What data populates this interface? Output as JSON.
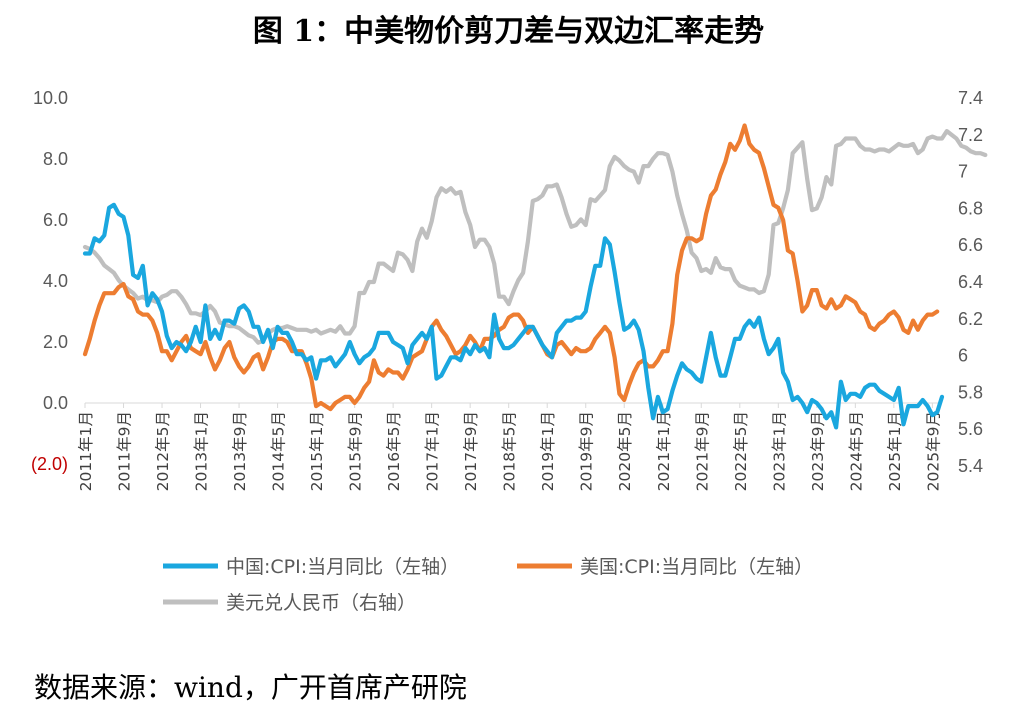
{
  "title": "图 1：中美物价剪刀差与双边汇率走势",
  "source": "数据来源：wind，广开首席产研院",
  "chart_data": {
    "type": "line",
    "y_left": {
      "min": -2,
      "max": 10,
      "ticks": [
        10,
        8,
        6,
        4,
        2,
        0,
        -2
      ],
      "tick_labels": [
        "10.0",
        "8.0",
        "6.0",
        "4.0",
        "2.0",
        "0.0",
        "(2.0)"
      ]
    },
    "y_right": {
      "min": 5.4,
      "max": 7.4,
      "ticks": [
        7.4,
        7.2,
        7,
        6.8,
        6.6,
        6.4,
        6.2,
        6,
        5.8,
        5.6,
        5.4
      ],
      "tick_labels": [
        "7.4",
        "7.2",
        "7",
        "6.8",
        "6.6",
        "6.4",
        "6.2",
        "6",
        "5.8",
        "5.6",
        "5.4"
      ]
    },
    "x_start": "2011-01",
    "x_end": "2025-11",
    "x_tick_labels": [
      "2011年1月",
      "2011年9月",
      "2012年5月",
      "2013年1月",
      "2013年9月",
      "2014年5月",
      "2015年1月",
      "2015年9月",
      "2016年5月",
      "2017年1月",
      "2017年9月",
      "2018年5月",
      "2019年1月",
      "2019年9月",
      "2020年5月",
      "2021年1月",
      "2021年9月",
      "2022年5月",
      "2023年1月",
      "2023年9月",
      "2024年5月",
      "2025年1月",
      "2025年9月"
    ],
    "series": [
      {
        "name": "中国:CPI:当月同比（左轴）",
        "axis": "left",
        "color": "#1aa7df",
        "values": [
          4.9,
          4.9,
          5.4,
          5.3,
          5.5,
          6.4,
          6.5,
          6.2,
          6.1,
          5.5,
          4.2,
          4.1,
          4.5,
          3.2,
          3.6,
          3.4,
          3.0,
          2.2,
          1.8,
          2.0,
          1.9,
          1.7,
          2.0,
          2.5,
          2.0,
          3.2,
          2.1,
          2.4,
          2.1,
          2.7,
          2.7,
          2.6,
          3.1,
          3.2,
          3.0,
          2.5,
          2.5,
          2.0,
          2.4,
          1.8,
          2.5,
          2.3,
          2.3,
          2.0,
          1.6,
          1.6,
          1.4,
          1.5,
          0.8,
          1.4,
          1.4,
          1.5,
          1.2,
          1.4,
          1.6,
          2.0,
          1.6,
          1.3,
          1.5,
          1.6,
          1.8,
          2.3,
          2.3,
          2.3,
          2.0,
          1.9,
          1.8,
          1.3,
          1.9,
          2.1,
          2.3,
          2.1,
          2.5,
          0.8,
          0.9,
          1.2,
          1.5,
          1.5,
          1.4,
          1.8,
          1.6,
          1.9,
          1.7,
          1.8,
          1.5,
          2.9,
          2.1,
          1.8,
          1.8,
          1.9,
          2.1,
          2.3,
          2.5,
          2.5,
          2.2,
          1.9,
          1.7,
          1.5,
          2.3,
          2.5,
          2.7,
          2.7,
          2.8,
          2.8,
          3.0,
          3.8,
          4.5,
          4.5,
          5.4,
          5.2,
          4.3,
          3.3,
          2.4,
          2.5,
          2.7,
          2.4,
          1.7,
          0.5,
          -0.5,
          0.2,
          -0.3,
          -0.2,
          0.4,
          0.9,
          1.3,
          1.1,
          1.0,
          0.8,
          0.7,
          1.5,
          2.3,
          1.5,
          0.9,
          0.9,
          1.5,
          2.1,
          2.1,
          2.5,
          2.7,
          2.5,
          2.8,
          2.1,
          1.6,
          1.8,
          2.1,
          1.0,
          0.7,
          0.1,
          0.2,
          0.0,
          -0.3,
          0.1,
          0.0,
          -0.2,
          -0.5,
          -0.3,
          -0.8,
          0.7,
          0.1,
          0.3,
          0.3,
          0.2,
          0.5,
          0.6,
          0.6,
          0.4,
          0.3,
          0.2,
          0.1,
          0.5,
          -0.7,
          -0.1,
          -0.1,
          -0.1,
          0.1,
          -0.1,
          -0.4,
          -0.3,
          0.2
        ]
      },
      {
        "name": "美国:CPI:当月同比（左轴）",
        "axis": "left",
        "color": "#ed7d31",
        "values": [
          1.6,
          2.1,
          2.7,
          3.2,
          3.6,
          3.6,
          3.6,
          3.8,
          3.9,
          3.5,
          3.4,
          3.0,
          2.9,
          2.9,
          2.7,
          2.3,
          1.7,
          1.7,
          1.4,
          1.7,
          2.0,
          2.2,
          1.8,
          1.7,
          1.6,
          2.0,
          1.5,
          1.1,
          1.4,
          1.8,
          2.0,
          1.5,
          1.2,
          1.0,
          1.2,
          1.5,
          1.6,
          1.1,
          1.5,
          2.0,
          2.1,
          2.1,
          2.0,
          1.7,
          1.7,
          1.7,
          1.3,
          0.8,
          -0.1,
          0.0,
          -0.1,
          -0.2,
          0.0,
          0.1,
          0.2,
          0.2,
          0.0,
          0.2,
          0.5,
          0.7,
          1.4,
          1.0,
          0.9,
          1.1,
          1.0,
          1.0,
          0.8,
          1.1,
          1.5,
          1.6,
          1.7,
          2.1,
          2.5,
          2.7,
          2.4,
          2.2,
          1.9,
          1.6,
          1.7,
          1.9,
          2.2,
          2.0,
          1.7,
          2.1,
          2.1,
          2.2,
          2.4,
          2.5,
          2.8,
          2.9,
          2.9,
          2.7,
          2.3,
          2.5,
          2.2,
          1.9,
          1.6,
          1.5,
          1.9,
          2.0,
          1.8,
          1.6,
          1.8,
          1.7,
          1.7,
          1.8,
          2.1,
          2.3,
          2.5,
          2.3,
          1.5,
          0.3,
          0.1,
          0.6,
          1.0,
          1.3,
          1.4,
          1.2,
          1.2,
          1.4,
          1.7,
          1.7,
          2.6,
          4.2,
          5.0,
          5.4,
          5.4,
          5.3,
          5.4,
          6.2,
          6.8,
          7.0,
          7.5,
          7.9,
          8.5,
          8.3,
          8.6,
          9.1,
          8.5,
          8.3,
          8.2,
          7.7,
          7.1,
          6.5,
          6.4,
          6.0,
          5.0,
          4.9,
          4.0,
          3.0,
          3.2,
          3.7,
          3.7,
          3.2,
          3.1,
          3.4,
          3.1,
          3.2,
          3.5,
          3.4,
          3.3,
          3.0,
          2.9,
          2.5,
          2.4,
          2.6,
          2.7,
          2.9,
          3.0,
          2.8,
          2.4,
          2.3,
          2.7,
          2.4,
          2.7,
          2.9,
          2.9,
          3.0
        ]
      },
      {
        "name": "美元兑人民币（右轴）",
        "axis": "right",
        "color": "#bfbfbf",
        "values": [
          6.59,
          6.58,
          6.56,
          6.53,
          6.49,
          6.47,
          6.45,
          6.41,
          6.38,
          6.36,
          6.34,
          6.31,
          6.32,
          6.3,
          6.3,
          6.29,
          6.32,
          6.33,
          6.35,
          6.35,
          6.32,
          6.28,
          6.23,
          6.23,
          6.22,
          6.24,
          6.27,
          6.24,
          6.18,
          6.17,
          6.16,
          6.16,
          6.15,
          6.13,
          6.11,
          6.1,
          6.07,
          6.08,
          6.12,
          6.14,
          6.15,
          6.15,
          6.16,
          6.15,
          6.14,
          6.14,
          6.14,
          6.13,
          6.14,
          6.12,
          6.13,
          6.14,
          6.13,
          6.16,
          6.12,
          6.12,
          6.16,
          6.34,
          6.34,
          6.4,
          6.4,
          6.5,
          6.5,
          6.48,
          6.46,
          6.56,
          6.55,
          6.52,
          6.46,
          6.62,
          6.69,
          6.64,
          6.73,
          6.86,
          6.91,
          6.89,
          6.91,
          6.88,
          6.89,
          6.78,
          6.71,
          6.59,
          6.63,
          6.63,
          6.59,
          6.5,
          6.32,
          6.32,
          6.28,
          6.35,
          6.41,
          6.45,
          6.62,
          6.84,
          6.85,
          6.87,
          6.92,
          6.92,
          6.93,
          6.86,
          6.77,
          6.7,
          6.71,
          6.74,
          6.71,
          6.85,
          6.84,
          6.87,
          6.9,
          7.03,
          7.08,
          7.06,
          7.03,
          7.01,
          7.0,
          6.94,
          7.03,
          7.03,
          7.07,
          7.1,
          7.1,
          7.09,
          7.0,
          6.87,
          6.77,
          6.68,
          6.56,
          6.53,
          6.46,
          6.47,
          6.45,
          6.53,
          6.48,
          6.47,
          6.47,
          6.41,
          6.38,
          6.37,
          6.36,
          6.36,
          6.34,
          6.35,
          6.44,
          6.71,
          6.72,
          6.8,
          6.9,
          7.1,
          7.13,
          7.16,
          6.96,
          6.79,
          6.8,
          6.86,
          6.97,
          6.93,
          7.14,
          7.15,
          7.18,
          7.18,
          7.18,
          7.14,
          7.12,
          7.12,
          7.11,
          7.12,
          7.12,
          7.11,
          7.13,
          7.15,
          7.14,
          7.14,
          7.15,
          7.1,
          7.12,
          7.18,
          7.19,
          7.18,
          7.18,
          7.22,
          7.2,
          7.18,
          7.14,
          7.13,
          7.11,
          7.1,
          7.1,
          7.09
        ]
      }
    ],
    "legend": [
      "中国:CPI:当月同比（左轴）",
      "美国:CPI:当月同比（左轴）",
      "美元兑人民币（右轴）"
    ]
  }
}
